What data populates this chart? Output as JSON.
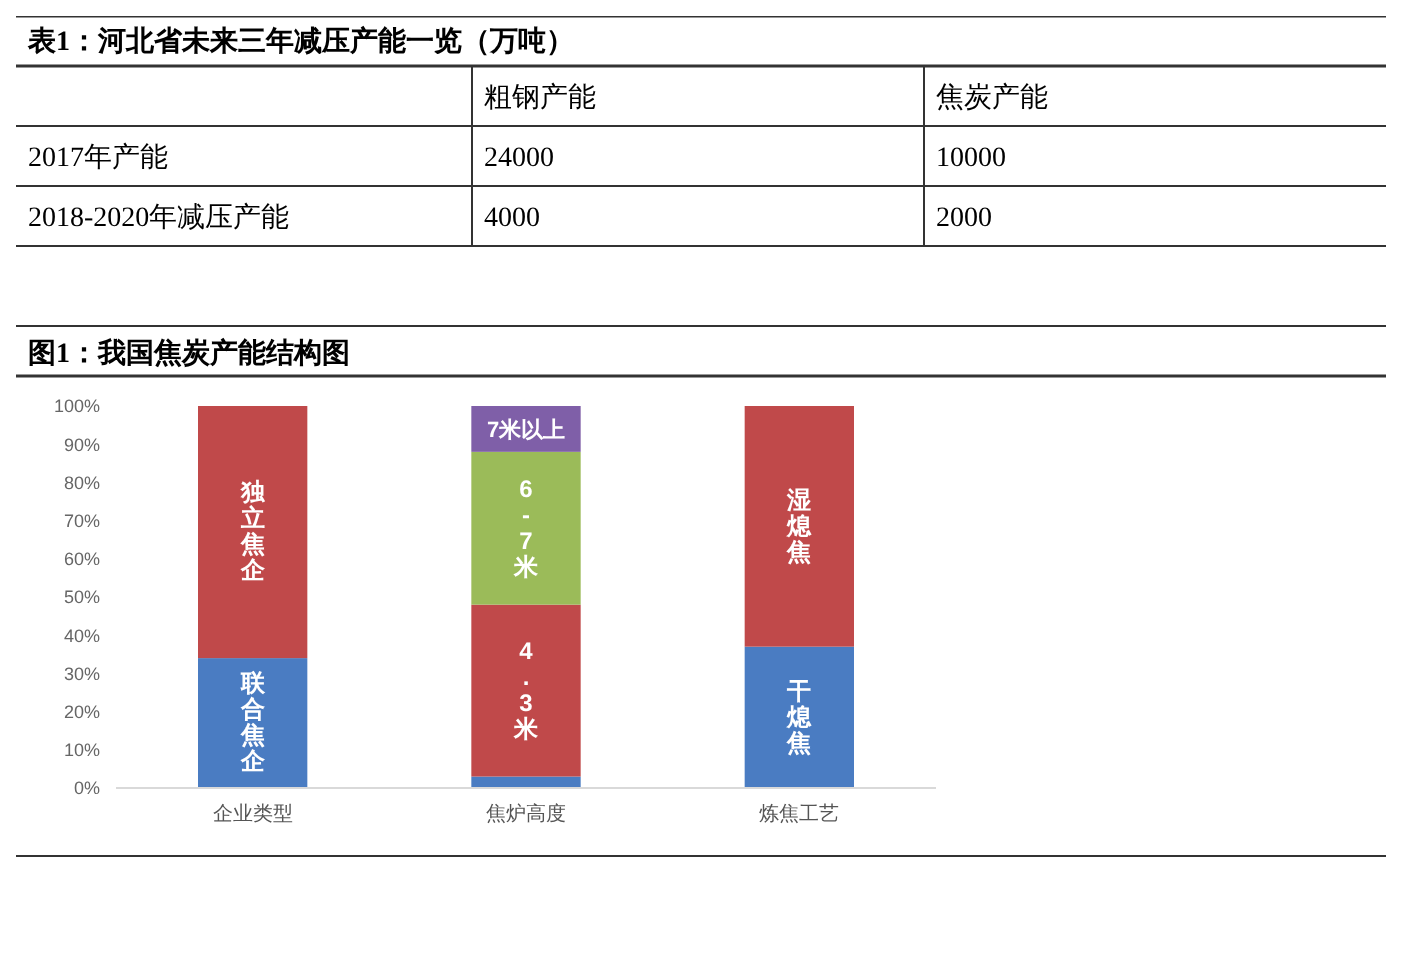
{
  "chart_data": [
    {
      "type": "other",
      "title": "表1：河北省未来三年减压产能一览（万吨）",
      "annotations": [
        "粗钢产能",
        "焦炭产能",
        "2017年产能",
        "24000",
        "10000",
        "2018-2020年减压产能",
        "4000",
        "2000"
      ]
    },
    {
      "type": "bar",
      "title": "图1：我国焦炭产能结构图",
      "categories": [
        "企业类型",
        "焦炉高度",
        "炼焦工艺"
      ],
      "stacked": true,
      "ylim": [
        0,
        100
      ],
      "yticks": [
        {
          "value": 0,
          "label": "0%"
        },
        {
          "value": 10,
          "label": "10%"
        },
        {
          "value": 20,
          "label": "20%"
        },
        {
          "value": 30,
          "label": "30%"
        },
        {
          "value": 40,
          "label": "40%"
        },
        {
          "value": 50,
          "label": "50%"
        },
        {
          "value": 60,
          "label": "60%"
        },
        {
          "value": 70,
          "label": "70%"
        },
        {
          "value": 80,
          "label": "80%"
        },
        {
          "value": 90,
          "label": "90%"
        },
        {
          "value": 100,
          "label": "100%"
        }
      ],
      "series": [
        {
          "name": "联合焦企",
          "color": "#4a7cc2",
          "values": [
            34,
            null,
            null
          ]
        },
        {
          "name": "独立焦企",
          "color": "#c0494a",
          "values": [
            66,
            null,
            null
          ]
        },
        {
          "color": "#4a7cc2",
          "values": [
            null,
            3,
            null
          ]
        },
        {
          "name": "4.3米",
          "color": "#c0494a",
          "values": [
            null,
            45,
            null
          ]
        },
        {
          "name": "6-7米",
          "color": "#9bbb59",
          "values": [
            null,
            40,
            null
          ]
        },
        {
          "name": "7米以上",
          "color": "#7f5fa8",
          "values": [
            null,
            12,
            null
          ]
        },
        {
          "name": "干熄焦",
          "color": "#4a7cc2",
          "values": [
            null,
            null,
            37
          ]
        },
        {
          "name": "湿熄焦",
          "color": "#c0494a",
          "values": [
            null,
            null,
            63
          ]
        }
      ]
    }
  ]
}
